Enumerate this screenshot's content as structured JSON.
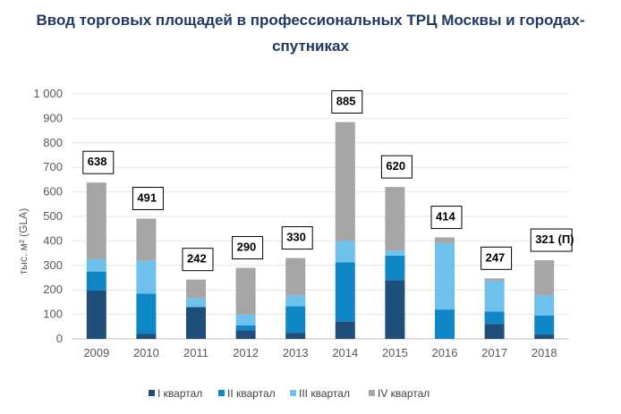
{
  "title_line1": "Ввод торговых площадей в профессиональных ТРЦ Москвы и городах-",
  "title_line2": "спутниках",
  "chart_data": {
    "type": "bar",
    "stacked": true,
    "title": "Ввод торговых площадей в профессиональных ТРЦ Москвы и городах-спутниках",
    "ylabel": "тыс. м² (GLA)",
    "xlabel": "",
    "ylim": [
      0,
      1000
    ],
    "yticks": [
      0,
      100,
      200,
      300,
      400,
      500,
      600,
      700,
      800,
      900,
      1000
    ],
    "ytick_labels": [
      "0",
      "100",
      "200",
      "300",
      "400",
      "500",
      "600",
      "700",
      "800",
      "900",
      "1 000"
    ],
    "grid": true,
    "legend_position": "bottom",
    "categories": [
      "2009",
      "2010",
      "2011",
      "2012",
      "2013",
      "2014",
      "2015",
      "2016",
      "2017",
      "2018"
    ],
    "series": [
      {
        "name": "I квартал",
        "color": "#1f4e79",
        "values": [
          197,
          20,
          130,
          35,
          25,
          72,
          240,
          0,
          60,
          18
        ]
      },
      {
        "name": "II квартал",
        "color": "#0f86c6",
        "values": [
          78,
          165,
          0,
          20,
          108,
          240,
          100,
          120,
          52,
          78
        ]
      },
      {
        "name": "III квартал",
        "color": "#6ec1ea",
        "values": [
          50,
          135,
          35,
          45,
          45,
          88,
          20,
          272,
          125,
          82
        ]
      },
      {
        "name": "IV квартал",
        "color": "#a6a6a6",
        "values": [
          313,
          171,
          77,
          190,
          152,
          485,
          260,
          22,
          10,
          143
        ]
      }
    ],
    "totals": [
      638,
      491,
      242,
      290,
      330,
      885,
      620,
      414,
      247,
      321
    ],
    "total_labels": [
      "638",
      "491",
      "242",
      "290",
      "330",
      "885",
      "620",
      "414",
      "247",
      "321 (П)"
    ]
  }
}
